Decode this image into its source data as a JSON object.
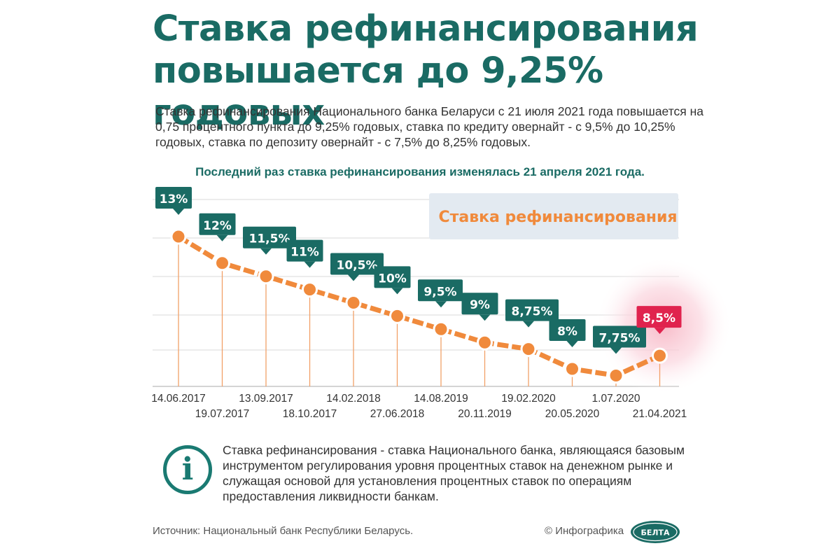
{
  "title": "Ставка рефинансирования повышается до 9,25% годовых",
  "intro": "Ставка рефинансирования Национального банка Беларуси с 21 июля 2021 года повышается на 0,75 процентного пункта до 9,25% годовых, ставка по кредиту овернайт - с 9,5% до 10,25% годовых, ставка по депозиту овернайт - с 7,5% до 8,25% годовых.",
  "subhead": "Последний раз ставка рефинансирования изменялась 21 апреля 2021 года.",
  "info_text": "Ставка рефинансирования - ставка Национального банка, являющаяся базовым инструментом регулирования уровня процентных ставок на денежном рынке и служащая основой для установления процентных ставок по операциям предоставления ликвидности банкам.",
  "info_icon_glyph": "i",
  "footer": {
    "source": "Источник: Национальный банк Республики Беларусь.",
    "credit": "© Инфографика",
    "logo_text": "БЕЛТА"
  },
  "colors": {
    "title": "#1a6b64",
    "label_box": "#1a6b64",
    "highlight_box": "#e0234e",
    "line": "#f08a3c",
    "legend_text": "#f08a3c",
    "legend_bg": "#e3eaf1"
  },
  "chart_data": {
    "type": "line",
    "legend": "Ставка рефинансирования",
    "x": [
      "14.06.2017",
      "19.07.2017",
      "13.09.2017",
      "18.10.2017",
      "14.02.2018",
      "27.06.2018",
      "14.08.2019",
      "20.11.2019",
      "19.02.2020",
      "20.05.2020",
      "1.07.2020",
      "21.04.2021"
    ],
    "y": [
      13,
      12,
      11.5,
      11,
      10.5,
      10,
      9.5,
      9,
      8.75,
      8,
      7.75,
      8.5
    ],
    "labels": [
      "13%",
      "12%",
      "11,5%",
      "11%",
      "10,5%",
      "10%",
      "9,5%",
      "9%",
      "8,75%",
      "8%",
      "7,75%",
      "8,5%"
    ],
    "highlight_last": true,
    "grid": true
  }
}
